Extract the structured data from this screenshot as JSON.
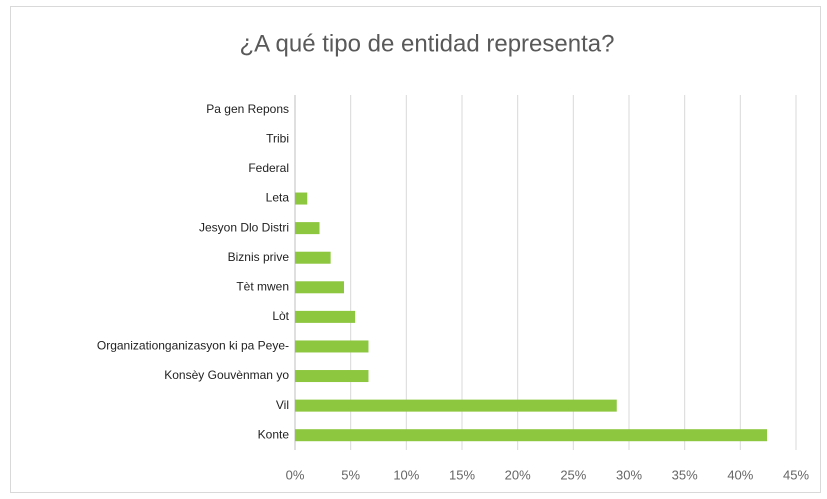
{
  "chart_data": {
    "type": "barh",
    "title": "¿A qué tipo de entidad representa?",
    "categories": [
      "Pa gen Repons",
      "Tribi",
      "Federal",
      "Leta",
      "Jesyon Dlo Distri",
      "Biznis prive",
      "Tèt mwen",
      "Lòt",
      "Organizationganizasyon ki pa Peye-",
      "Konsèy Gouvènman yo",
      "Vil",
      "Konte"
    ],
    "values": [
      0,
      0,
      0,
      1.1,
      2.2,
      3.2,
      4.4,
      5.4,
      6.6,
      6.6,
      28.9,
      42.4
    ],
    "color": "#8dc63f",
    "xlim": [
      0,
      45
    ],
    "xticks": [
      {
        "value": 0,
        "label": "0%"
      },
      {
        "value": 5,
        "label": "5%"
      },
      {
        "value": 10,
        "label": "10%"
      },
      {
        "value": 15,
        "label": "15%"
      },
      {
        "value": 20,
        "label": "20%"
      },
      {
        "value": 25,
        "label": "25%"
      },
      {
        "value": 30,
        "label": "30%"
      },
      {
        "value": 35,
        "label": "35%"
      },
      {
        "value": 40,
        "label": "40%"
      },
      {
        "value": 45,
        "label": "45%"
      }
    ],
    "grid": true
  }
}
